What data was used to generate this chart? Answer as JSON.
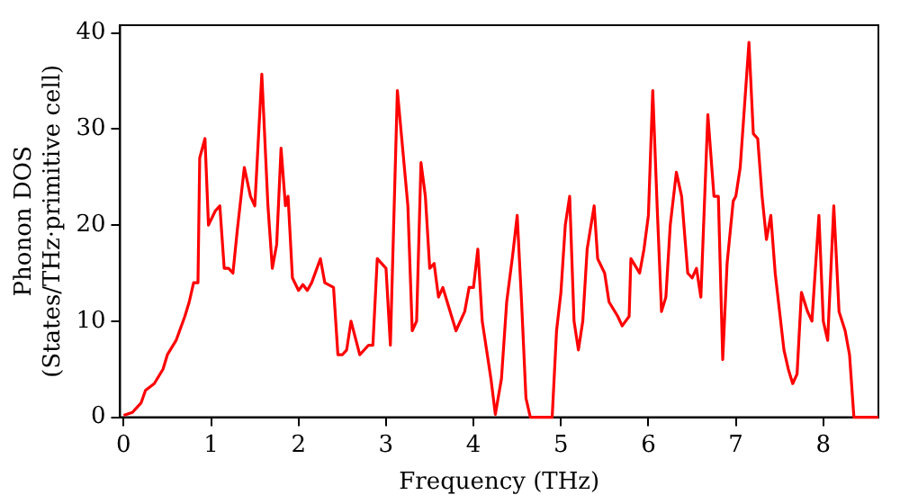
{
  "chart_data": {
    "type": "line",
    "xlabel": "Frequency (THz)",
    "ylabel": "Phonon DOS\n(States/THz·primitive cell)",
    "x": [
      0,
      0.1,
      0.2,
      0.25,
      0.35,
      0.45,
      0.5,
      0.6,
      0.7,
      0.75,
      0.8,
      0.85,
      0.87,
      0.93,
      0.97,
      1.05,
      1.1,
      1.15,
      1.2,
      1.25,
      1.3,
      1.38,
      1.45,
      1.5,
      1.58,
      1.65,
      1.7,
      1.75,
      1.8,
      1.85,
      1.88,
      1.93,
      2.0,
      2.05,
      2.1,
      2.15,
      2.25,
      2.3,
      2.4,
      2.45,
      2.5,
      2.55,
      2.6,
      2.7,
      2.8,
      2.85,
      2.9,
      3.0,
      3.05,
      3.13,
      3.25,
      3.3,
      3.35,
      3.4,
      3.45,
      3.5,
      3.55,
      3.6,
      3.65,
      3.75,
      3.8,
      3.9,
      3.95,
      4.0,
      4.05,
      4.1,
      4.2,
      4.25,
      4.32,
      4.38,
      4.45,
      4.5,
      4.55,
      4.6,
      4.65,
      4.9,
      4.95,
      5.0,
      5.05,
      5.1,
      5.15,
      5.2,
      5.25,
      5.3,
      5.38,
      5.42,
      5.5,
      5.55,
      5.65,
      5.7,
      5.78,
      5.8,
      5.9,
      5.95,
      6.0,
      6.05,
      6.1,
      6.15,
      6.2,
      6.25,
      6.32,
      6.38,
      6.45,
      6.5,
      6.55,
      6.6,
      6.68,
      6.75,
      6.8,
      6.85,
      6.9,
      6.97,
      7.0,
      7.05,
      7.15,
      7.2,
      7.25,
      7.3,
      7.35,
      7.4,
      7.45,
      7.5,
      7.55,
      7.6,
      7.65,
      7.7,
      7.75,
      7.82,
      7.87,
      7.95,
      8.0,
      8.05,
      8.12,
      8.18,
      8.25,
      8.3,
      8.35,
      8.63
    ],
    "series": [
      {
        "color": "#ff0000",
        "values": [
          0.2,
          0.5,
          1.5,
          2.8,
          3.5,
          5,
          6.5,
          8,
          10.5,
          12,
          14,
          14,
          27,
          29,
          20,
          21.5,
          22,
          15.5,
          15.5,
          15,
          19.5,
          26,
          23,
          22,
          35.7,
          22,
          15.5,
          18,
          28,
          22,
          23,
          14.5,
          13.2,
          13.8,
          13.2,
          14,
          16.5,
          14,
          13.5,
          6.5,
          6.5,
          7,
          10,
          6.5,
          7.5,
          7.5,
          16.5,
          15.5,
          7.5,
          34,
          22,
          9,
          10,
          26.5,
          23,
          15.5,
          16,
          12.5,
          13.5,
          10.5,
          9,
          11,
          13.5,
          13.5,
          17.5,
          10,
          4,
          0.3,
          4,
          12,
          17,
          21,
          12,
          2,
          0,
          0,
          9,
          13,
          20,
          23,
          10,
          7,
          10,
          17.5,
          22,
          16.5,
          15,
          12,
          10.5,
          9.5,
          10.5,
          16.5,
          15,
          17.5,
          21,
          34,
          22,
          11,
          12.5,
          20,
          25.5,
          23,
          15,
          14.5,
          15.5,
          12.5,
          31.5,
          23,
          23,
          6,
          16,
          22.5,
          23,
          26,
          39,
          29.5,
          29,
          23,
          18.5,
          21,
          15,
          11,
          7,
          5,
          3.5,
          4.5,
          13,
          11,
          10,
          21,
          10,
          8,
          22,
          11,
          9,
          6.5,
          0,
          0
        ]
      }
    ],
    "xlim": [
      -0.04,
      8.63
    ],
    "ylim": [
      0,
      40.8
    ],
    "xticks": [
      0,
      1,
      2,
      3,
      4,
      5,
      6,
      7,
      8
    ],
    "yticks": [
      0,
      10,
      20,
      30,
      40
    ],
    "grid": false,
    "legend": false,
    "marker": "none",
    "line_style": "solid"
  }
}
